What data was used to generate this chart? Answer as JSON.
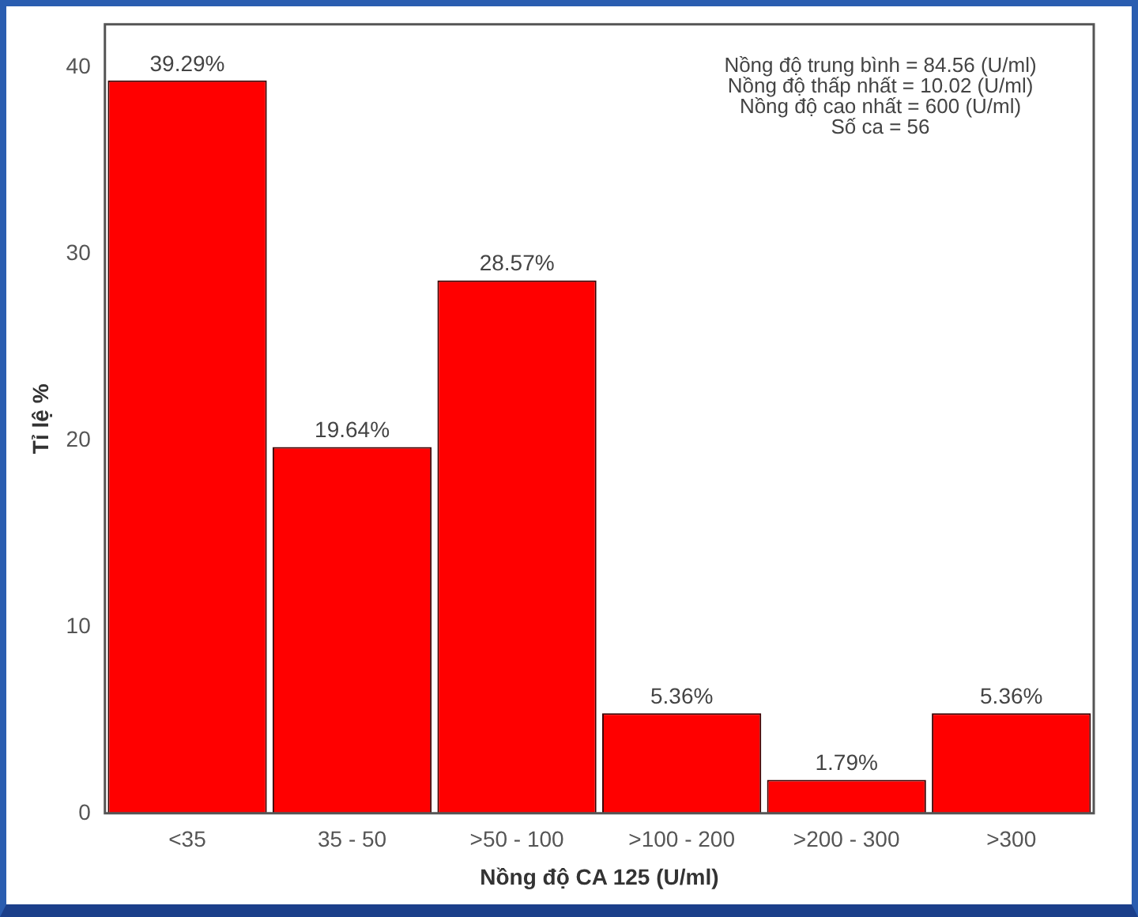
{
  "chart_data": {
    "type": "bar",
    "xlabel": "Nồng độ CA 125 (U/ml)",
    "ylabel": "Tỉ lệ %",
    "categories": [
      "<35",
      "35 - 50",
      ">50 - 100",
      ">100 - 200",
      ">200 - 300",
      ">300"
    ],
    "values": [
      39.29,
      19.64,
      28.57,
      5.36,
      1.79,
      5.36
    ],
    "value_labels": [
      "39.29%",
      "19.64%",
      "28.57%",
      "5.36%",
      "1.79%",
      "5.36%"
    ],
    "color": "#ff0000",
    "ylim": [
      0,
      42.3
    ],
    "yticks": [
      0,
      10,
      20,
      30,
      40
    ],
    "grid": false,
    "legend": false,
    "annotations": [
      "Nồng độ trung bình = 84.56 (U/ml)",
      "Nồng độ thấp nhất = 10.02 (U/ml)",
      "Nồng độ cao nhất = 600 (U/ml)",
      "Số ca = 56"
    ]
  }
}
